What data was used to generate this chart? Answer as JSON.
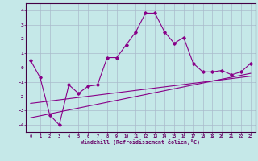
{
  "xlabel": "Windchill (Refroidissement éolien,°C)",
  "bg_color": "#c5e8e8",
  "line_color": "#880088",
  "grid_color": "#aabbcc",
  "hours": [
    0,
    1,
    2,
    3,
    4,
    5,
    6,
    7,
    8,
    9,
    10,
    11,
    12,
    13,
    14,
    15,
    16,
    17,
    18,
    19,
    20,
    21,
    22,
    23
  ],
  "windchill": [
    0.5,
    -0.7,
    -3.3,
    -4.0,
    -1.2,
    -1.8,
    -1.3,
    -1.2,
    0.7,
    0.7,
    1.6,
    2.5,
    3.8,
    3.8,
    2.5,
    1.7,
    2.1,
    0.3,
    -0.3,
    -0.3,
    -0.2,
    -0.5,
    -0.3,
    0.3
  ],
  "line1_x": [
    0,
    23
  ],
  "line1_y": [
    -2.5,
    -0.6
  ],
  "line2_x": [
    0,
    23
  ],
  "line2_y": [
    -3.5,
    -0.4
  ],
  "ylim": [
    -4.5,
    4.5
  ],
  "xlim": [
    -0.5,
    23.5
  ],
  "yticks": [
    -4,
    -3,
    -2,
    -1,
    0,
    1,
    2,
    3,
    4
  ]
}
